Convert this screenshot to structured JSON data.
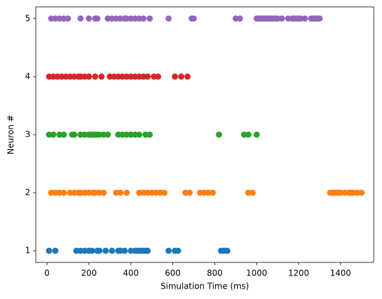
{
  "chart_data": {
    "type": "scatter",
    "xlabel": "Simulation Time (ms)",
    "ylabel": "Neuron #",
    "xlim": [
      -53,
      1558
    ],
    "ylim": [
      0.8,
      5.2
    ],
    "xticks": [
      0,
      200,
      400,
      600,
      800,
      1000,
      1200,
      1400
    ],
    "yticks": [
      1,
      2,
      3,
      4,
      5
    ],
    "series": [
      {
        "color": "#1f77b4",
        "x": [
          10,
          40,
          140,
          160,
          180,
          200,
          215,
          240,
          250,
          280,
          310,
          340,
          350,
          370,
          400,
          420,
          430,
          440,
          450,
          460,
          470,
          480,
          580,
          610,
          625,
          830,
          845,
          860
        ],
        "values": [
          1,
          1,
          1,
          1,
          1,
          1,
          1,
          1,
          1,
          1,
          1,
          1,
          1,
          1,
          1,
          1,
          1,
          1,
          1,
          1,
          1,
          1,
          1,
          1,
          1,
          1,
          1,
          1
        ]
      },
      {
        "color": "#ff7f0e",
        "x": [
          20,
          40,
          60,
          80,
          110,
          130,
          150,
          160,
          180,
          200,
          220,
          230,
          250,
          270,
          330,
          350,
          380,
          440,
          460,
          480,
          500,
          520,
          540,
          560,
          660,
          680,
          730,
          750,
          770,
          790,
          960,
          980,
          1350,
          1360,
          1370,
          1380,
          1390,
          1400,
          1420,
          1440,
          1450,
          1460,
          1480,
          1500
        ],
        "values": [
          2,
          2,
          2,
          2,
          2,
          2,
          2,
          2,
          2,
          2,
          2,
          2,
          2,
          2,
          2,
          2,
          2,
          2,
          2,
          2,
          2,
          2,
          2,
          2,
          2,
          2,
          2,
          2,
          2,
          2,
          2,
          2,
          2,
          2,
          2,
          2,
          2,
          2,
          2,
          2,
          2,
          2,
          2,
          2
        ]
      },
      {
        "color": "#2ca02c",
        "x": [
          10,
          30,
          60,
          80,
          120,
          130,
          160,
          180,
          200,
          210,
          220,
          230,
          240,
          250,
          270,
          290,
          340,
          360,
          380,
          400,
          420,
          440,
          470,
          490,
          820,
          940,
          960,
          1000
        ],
        "values": [
          3,
          3,
          3,
          3,
          3,
          3,
          3,
          3,
          3,
          3,
          3,
          3,
          3,
          3,
          3,
          3,
          3,
          3,
          3,
          3,
          3,
          3,
          3,
          3,
          3,
          3,
          3,
          3
        ]
      },
      {
        "color": "#d62728",
        "x": [
          10,
          30,
          50,
          70,
          90,
          110,
          130,
          150,
          160,
          180,
          200,
          230,
          260,
          300,
          320,
          340,
          360,
          380,
          400,
          420,
          440,
          460,
          480,
          510,
          530,
          610,
          640,
          670
        ],
        "values": [
          4,
          4,
          4,
          4,
          4,
          4,
          4,
          4,
          4,
          4,
          4,
          4,
          4,
          4,
          4,
          4,
          4,
          4,
          4,
          4,
          4,
          4,
          4,
          4,
          4,
          4,
          4,
          4
        ]
      },
      {
        "color": "#9467bd",
        "x": [
          20,
          40,
          60,
          80,
          100,
          160,
          200,
          230,
          240,
          290,
          310,
          330,
          350,
          370,
          380,
          400,
          420,
          440,
          460,
          490,
          580,
          690,
          700,
          900,
          920,
          1000,
          1010,
          1020,
          1030,
          1040,
          1050,
          1060,
          1070,
          1080,
          1090,
          1100,
          1120,
          1150,
          1170,
          1180,
          1190,
          1200,
          1210,
          1230,
          1260,
          1270,
          1280,
          1290,
          1300
        ],
        "values": [
          5,
          5,
          5,
          5,
          5,
          5,
          5,
          5,
          5,
          5,
          5,
          5,
          5,
          5,
          5,
          5,
          5,
          5,
          5,
          5,
          5,
          5,
          5,
          5,
          5,
          5,
          5,
          5,
          5,
          5,
          5,
          5,
          5,
          5,
          5,
          5,
          5,
          5,
          5,
          5,
          5,
          5,
          5,
          5,
          5,
          5,
          5,
          5,
          5
        ]
      }
    ]
  }
}
